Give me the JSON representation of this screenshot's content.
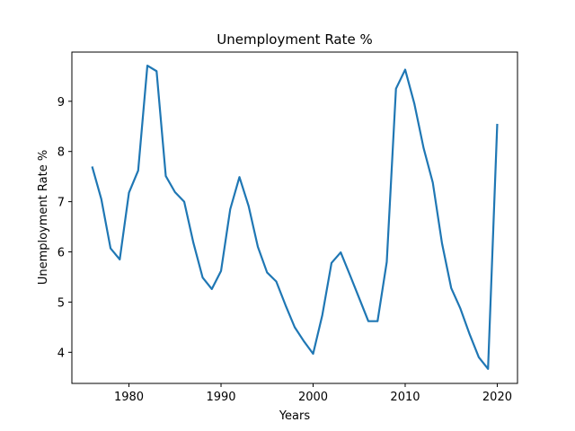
{
  "chart_data": {
    "type": "line",
    "title": "Unemployment Rate %",
    "xlabel": "Years",
    "ylabel": "Unemployment Rate %",
    "xlim": [
      1973.8,
      2022.2
    ],
    "ylim": [
      3.38,
      9.98
    ],
    "xticks": [
      1980,
      1990,
      2000,
      2010,
      2020
    ],
    "yticks": [
      4,
      5,
      6,
      7,
      8,
      9
    ],
    "grid": false,
    "color": "#1f77b4",
    "series": [
      {
        "x": [
          1976,
          1977,
          1978,
          1979,
          1980,
          1981,
          1982,
          1983,
          1984,
          1985,
          1986,
          1987,
          1988,
          1989,
          1990,
          1991,
          1992,
          1993,
          1994,
          1995,
          1996,
          1997,
          1998,
          1999,
          2000,
          2001,
          2002,
          2003,
          2004,
          2005,
          2006,
          2007,
          2008,
          2009,
          2010,
          2011,
          2012,
          2013,
          2014,
          2015,
          2016,
          2017,
          2018,
          2019,
          2020
        ],
        "values": [
          7.7,
          7.05,
          6.07,
          5.85,
          7.18,
          7.62,
          9.71,
          9.6,
          7.51,
          7.19,
          7.0,
          6.18,
          5.49,
          5.26,
          5.62,
          6.85,
          7.49,
          6.91,
          6.1,
          5.59,
          5.41,
          4.94,
          4.5,
          4.22,
          3.97,
          4.74,
          5.78,
          5.99,
          5.54,
          5.08,
          4.62,
          4.62,
          5.8,
          9.25,
          9.63,
          8.95,
          8.07,
          7.38,
          6.17,
          5.28,
          4.87,
          4.36,
          3.9,
          3.67,
          8.55
        ]
      }
    ]
  }
}
